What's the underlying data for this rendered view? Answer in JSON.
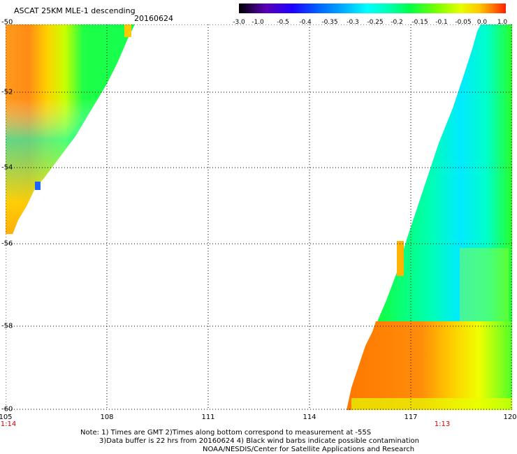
{
  "header": {
    "title": "ASCAT 25KM MLE-1 descending",
    "date": "20160624"
  },
  "colorbar": {
    "labels": [
      "-3.0",
      "-1.0",
      "-0.5",
      "-0.4",
      "-0.35",
      "-0.3",
      "-0.25",
      "-0.2",
      "-0.15",
      "-0.1",
      "-0.05",
      "0.0",
      "1.0"
    ],
    "colors": [
      "#000000",
      "#5a00b4",
      "#1e00ff",
      "#0064ff",
      "#00b4ff",
      "#00ffff",
      "#00ffb4",
      "#00ff46",
      "#78ff00",
      "#e6ff00",
      "#ffc800",
      "#ff7800",
      "#ff1e00"
    ]
  },
  "axes": {
    "lat_labels": [
      "-50",
      "-52",
      "-54",
      "-56",
      "-58",
      "-60"
    ],
    "lon_labels": [
      "105",
      "108",
      "111",
      "114",
      "117",
      "120"
    ],
    "time_labels": [
      "1:14",
      "1:13"
    ]
  },
  "map": {
    "lat_range": [
      -60,
      -50
    ],
    "lon_range": [
      105,
      120
    ]
  },
  "notes": {
    "line1": "Note: 1) Times are GMT 2)Times along bottom correspond to measurement at -55S",
    "line2": "3)Data buffer is 22 hrs from 20160624 4) Black wind barbs indicate possible contamination",
    "line3": "NOAA/NESDIS/Center for Satellite Applications and Research"
  }
}
